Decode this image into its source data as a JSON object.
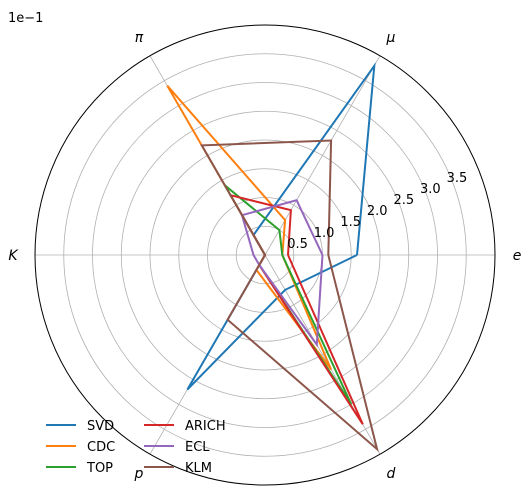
{
  "chart_data": {
    "type": "radar",
    "scale_note": "1e−1",
    "axes": [
      "e",
      "μ",
      "π",
      "K",
      "p",
      "d"
    ],
    "rlim": [
      0,
      4.0
    ],
    "r_ticks": [
      0.5,
      1.0,
      1.5,
      2.0,
      2.5,
      3.0,
      3.5
    ],
    "r_tick_labels": [
      "0.5",
      "1.0",
      "1.5",
      "2.0",
      "2.5",
      "3.0",
      "3.5"
    ],
    "grid": true,
    "legend_position": "lower-left",
    "series": [
      {
        "name": "SVD",
        "color": "#1f77b4",
        "values": [
          1.6,
          3.8,
          0.4,
          0.0,
          2.7,
          0.7
        ]
      },
      {
        "name": "CDC",
        "color": "#ff7f0e",
        "values": [
          0.3,
          0.7,
          3.4,
          0.0,
          0.3,
          2.3
        ]
      },
      {
        "name": "TOP",
        "color": "#2ca02c",
        "values": [
          0.3,
          0.5,
          1.4,
          0.0,
          0.2,
          3.0
        ]
      },
      {
        "name": "ARICH",
        "color": "#d62728",
        "values": [
          0.4,
          0.9,
          1.2,
          0.0,
          0.2,
          3.4
        ]
      },
      {
        "name": "ECL",
        "color": "#9467bd",
        "values": [
          1.0,
          1.1,
          0.8,
          0.2,
          0.2,
          1.8
        ]
      },
      {
        "name": "KLM",
        "color": "#8c564b",
        "values": [
          1.1,
          2.3,
          2.2,
          0.0,
          1.3,
          3.9
        ]
      }
    ]
  }
}
